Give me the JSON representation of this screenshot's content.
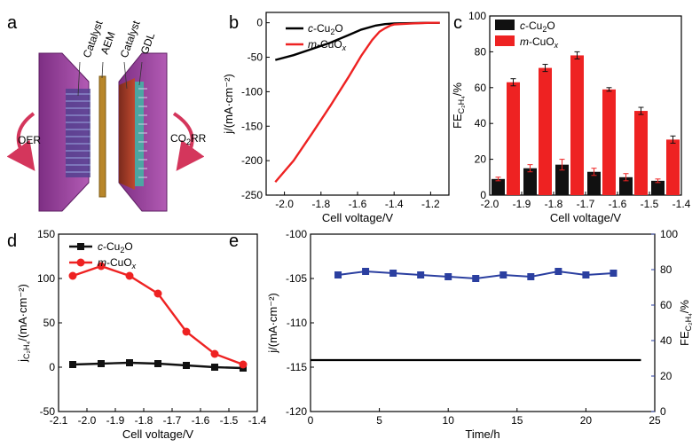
{
  "panel_labels": {
    "a": "a",
    "b": "b",
    "c": "c",
    "d": "d",
    "e": "e"
  },
  "schematic": {
    "labels": {
      "catalyst_left": "Catalyst",
      "aem": "AEM",
      "catalyst_right": "Catalyst",
      "gdl": "GDL",
      "oer": "OER",
      "co2rr": "CO",
      "co2rr_sub": "2",
      "co2rr_suffix": "RR"
    },
    "colors": {
      "frame": "#9b3d9e",
      "membrane": "#b8862a",
      "cathode": "#a53a2a",
      "arrows": "#d4365c"
    }
  },
  "legend_labels": {
    "c_cu2o": "c-Cu",
    "c_cu2o_sub": "2",
    "c_cu2o_end": "O",
    "m_cuox": "m-CuO",
    "m_cuox_sub": "x"
  },
  "chart_data": [
    {
      "id": "b",
      "type": "line",
      "xlabel": "Cell voltage/V",
      "ylabel": "j/(mA·cm⁻²)",
      "xlim": [
        -2.1,
        -1.1
      ],
      "ylim": [
        -250,
        15
      ],
      "xticks": [
        "-2.0",
        "-1.8",
        "-1.6",
        "-1.4",
        "-1.2"
      ],
      "xtick_values": [
        -2.0,
        -1.8,
        -1.6,
        -1.4,
        -1.2
      ],
      "yticks": [
        "0",
        "-50",
        "-100",
        "-150",
        "-200",
        "-250"
      ],
      "ytick_values": [
        0,
        -50,
        -100,
        -150,
        -200,
        -250
      ],
      "legend": "top-right",
      "series": [
        {
          "name": "c-Cu2O",
          "color": "#000000",
          "x": [
            -2.05,
            -1.95,
            -1.85,
            -1.75,
            -1.65,
            -1.58,
            -1.5,
            -1.45,
            -1.4,
            -1.3,
            -1.2,
            -1.15
          ],
          "y": [
            -54,
            -47,
            -38,
            -29,
            -18,
            -10,
            -4,
            -2,
            -1,
            -0.5,
            0,
            0
          ]
        },
        {
          "name": "m-CuOx",
          "color": "#ee2222",
          "x": [
            -2.05,
            -1.95,
            -1.85,
            -1.75,
            -1.65,
            -1.58,
            -1.52,
            -1.48,
            -1.45,
            -1.42,
            -1.4,
            -1.3,
            -1.2,
            -1.15
          ],
          "y": [
            -231,
            -200,
            -161,
            -121,
            -79,
            -48,
            -25,
            -13,
            -8,
            -4,
            -2.5,
            -1,
            0,
            0
          ]
        }
      ]
    },
    {
      "id": "c",
      "type": "bar",
      "xlabel": "Cell voltage/V",
      "ylabel": "FE",
      "ylabel_sub": "C₂H₄",
      "ylabel_end": "/%",
      "xlim": [
        -2.0,
        -1.4
      ],
      "ylim": [
        0,
        100
      ],
      "xticks": [
        "-2.0",
        "-1.9",
        "-1.8",
        "-1.7",
        "-1.6",
        "-1.5",
        "-1.4"
      ],
      "xtick_values": [
        -2.0,
        -1.9,
        -1.8,
        -1.7,
        -1.6,
        -1.5,
        -1.4
      ],
      "yticks": [
        "0",
        "20",
        "40",
        "60",
        "80",
        "100"
      ],
      "ytick_values": [
        0,
        20,
        40,
        60,
        80,
        100
      ],
      "legend": "top-left",
      "categories": [
        -1.95,
        -1.85,
        -1.75,
        -1.65,
        -1.55,
        -1.45
      ],
      "series": [
        {
          "name": "c-Cu2O",
          "color": "#111111",
          "values": [
            9,
            15,
            17,
            13,
            10,
            8
          ],
          "errors": [
            1,
            2,
            3,
            2,
            2,
            1
          ]
        },
        {
          "name": "m-CuOx",
          "color": "#ee2222",
          "values": [
            63,
            71,
            78,
            59,
            47,
            31
          ],
          "errors": [
            2,
            2,
            2,
            1,
            2,
            2
          ]
        }
      ]
    },
    {
      "id": "d",
      "type": "line",
      "xlabel": "Cell voltage/V",
      "ylabel": "j",
      "ylabel_sub": "C₂H₄",
      "ylabel_end": "/(mA·cm⁻²)",
      "xlim": [
        -2.1,
        -1.4
      ],
      "ylim": [
        -50,
        150
      ],
      "xticks": [
        "-2.1",
        "-2.0",
        "-1.9",
        "-1.8",
        "-1.7",
        "-1.6",
        "-1.5",
        "-1.4"
      ],
      "xtick_values": [
        -2.1,
        -2.0,
        -1.9,
        -1.8,
        -1.7,
        -1.6,
        -1.5,
        -1.4
      ],
      "yticks": [
        "-50",
        "0",
        "50",
        "100",
        "150"
      ],
      "ytick_values": [
        -50,
        0,
        50,
        100,
        150
      ],
      "legend": "top-left",
      "series": [
        {
          "name": "c-Cu2O",
          "color": "#111111",
          "marker": "square",
          "x": [
            -2.05,
            -1.95,
            -1.85,
            -1.75,
            -1.65,
            -1.55,
            -1.45
          ],
          "y": [
            3,
            4,
            5,
            4,
            2,
            0,
            -1
          ]
        },
        {
          "name": "m-CuOx",
          "color": "#ee2222",
          "marker": "circle",
          "x": [
            -2.05,
            -1.95,
            -1.85,
            -1.75,
            -1.65,
            -1.55,
            -1.45
          ],
          "y": [
            103,
            114,
            103,
            83,
            40,
            15,
            3
          ]
        }
      ]
    },
    {
      "id": "e",
      "type": "line",
      "xlabel": "Time/h",
      "ylabel": "j/(mA·cm⁻²)",
      "ylabel_right": "FE",
      "ylabel_right_sub": "C₂H₄",
      "ylabel_right_end": "/%",
      "xlim": [
        0,
        25
      ],
      "ylim": [
        -120,
        -100
      ],
      "ylim_right": [
        0,
        100
      ],
      "xticks": [
        "0",
        "5",
        "10",
        "15",
        "20",
        "25"
      ],
      "xtick_values": [
        0,
        5,
        10,
        15,
        20,
        25
      ],
      "yticks": [
        "-100",
        "-105",
        "-110",
        "-115",
        "-120"
      ],
      "ytick_values": [
        -100,
        -105,
        -110,
        -115,
        -120
      ],
      "yticks_right": [
        "0",
        "20",
        "40",
        "60",
        "80",
        "100"
      ],
      "ytick_right_values": [
        0,
        20,
        40,
        60,
        80,
        100
      ],
      "series": [
        {
          "name": "j",
          "color": "#000000",
          "axis": "left",
          "x": [
            0,
            24
          ],
          "y": [
            -114.2,
            -114.2
          ]
        },
        {
          "name": "FE",
          "color": "#2b3fa0",
          "axis": "right",
          "marker": "square",
          "x": [
            2,
            4,
            6,
            8,
            10,
            12,
            14,
            16,
            18,
            20,
            22
          ],
          "y": [
            77,
            79,
            78,
            77,
            76,
            75,
            77,
            76,
            79,
            77,
            78
          ]
        }
      ]
    }
  ]
}
